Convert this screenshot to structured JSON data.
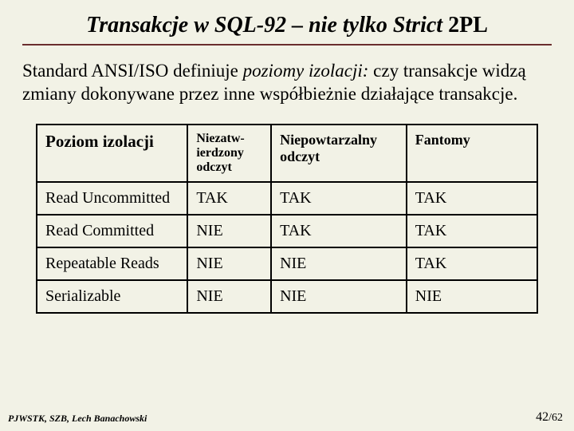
{
  "title": {
    "italic_part": "Transakcje w SQL-92 – nie tylko Strict",
    "plain_part": "2PL"
  },
  "paragraph": {
    "pre": "Standard ANSI/ISO definiuje ",
    "ital": "poziomy izolacji:",
    "post": " czy transakcje widzą zmiany dokonywane przez inne współbieżnie działające transakcje."
  },
  "table": {
    "headers": {
      "c0": "Poziom izolacji",
      "c1": "Niezatw-ierdzony odczyt",
      "c2": "Niepowtarzalny odczyt",
      "c3": "Fantomy"
    },
    "rows": [
      {
        "c0": "Read Uncommitted",
        "c1": "TAK",
        "c2": "TAK",
        "c3": "TAK"
      },
      {
        "c0": "Read Committed",
        "c1": "NIE",
        "c2": "TAK",
        "c3": "TAK"
      },
      {
        "c0": "Repeatable Reads",
        "c1": "NIE",
        "c2": "NIE",
        "c3": "TAK"
      },
      {
        "c0": "Serializable",
        "c1": "NIE",
        "c2": "NIE",
        "c3": "NIE"
      }
    ]
  },
  "footer": {
    "left": "PJWSTK, SZB, Lech Banachowski",
    "page_current": "42",
    "page_sep": "/",
    "page_total": "62"
  },
  "colors": {
    "background": "#f2f2e6",
    "title_underline": "#6b2e2e",
    "text": "#000000",
    "table_border": "#000000"
  }
}
